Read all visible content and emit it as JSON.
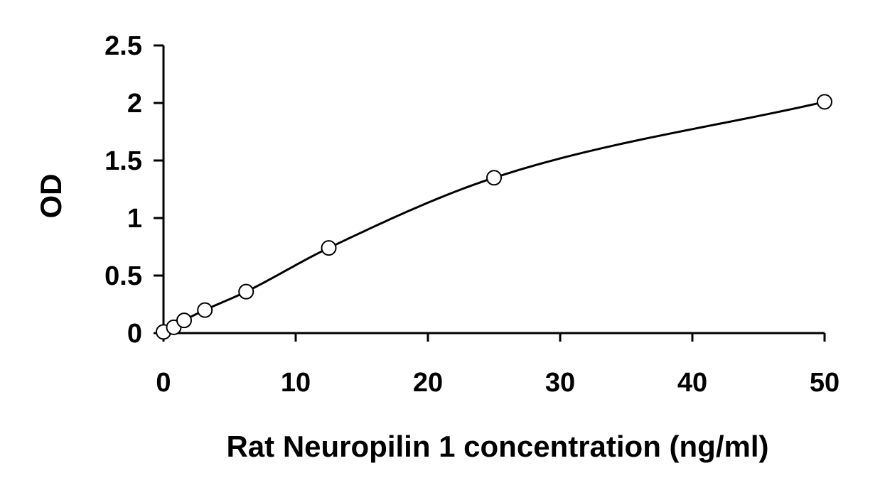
{
  "chart_data": {
    "type": "scatter",
    "title": "",
    "xlabel": "Rat Neuropilin 1 concentration (ng/ml)",
    "ylabel": "OD",
    "xlim": [
      0,
      50
    ],
    "ylim": [
      0,
      2.5
    ],
    "x_ticks": [
      0,
      10,
      20,
      30,
      40,
      50
    ],
    "x_tick_labels": [
      "0",
      "10",
      "20",
      "30",
      "40",
      "50"
    ],
    "y_ticks": [
      0,
      0.5,
      1,
      1.5,
      2,
      2.5
    ],
    "y_tick_labels": [
      "0",
      "0.5",
      "1",
      "1.5",
      "2",
      "2.5"
    ],
    "grid": false,
    "legend": "none",
    "series": [
      {
        "points": [
          {
            "x": 0,
            "y": 0.01
          },
          {
            "x": 0.78,
            "y": 0.05
          },
          {
            "x": 1.56,
            "y": 0.11
          },
          {
            "x": 3.13,
            "y": 0.2
          },
          {
            "x": 6.25,
            "y": 0.36
          },
          {
            "x": 12.5,
            "y": 0.74
          },
          {
            "x": 25,
            "y": 1.35
          },
          {
            "x": 50,
            "y": 2.01
          }
        ],
        "marker": "open-circle",
        "trendline": "smooth-fit",
        "color": "#000000"
      }
    ]
  }
}
